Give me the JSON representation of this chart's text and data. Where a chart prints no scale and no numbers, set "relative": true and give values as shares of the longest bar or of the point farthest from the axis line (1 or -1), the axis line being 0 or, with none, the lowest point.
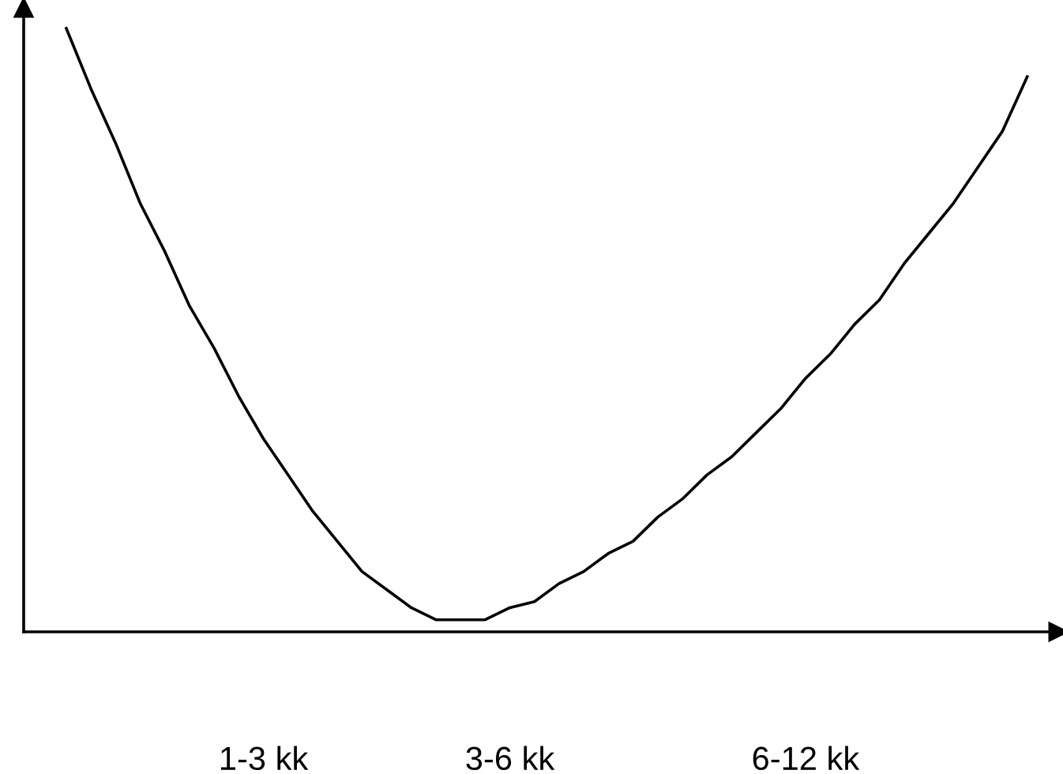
{
  "chart_data": {
    "type": "line",
    "relative": true,
    "marker": "none",
    "line_style": "solid",
    "grid": false,
    "legend": false,
    "categories": [
      null,
      null,
      null,
      null,
      null,
      null,
      null,
      null,
      "1-3 kk",
      null,
      null,
      null,
      null,
      null,
      null,
      null,
      null,
      null,
      "3-6 kk",
      null,
      null,
      null,
      null,
      null,
      null,
      null,
      null,
      null,
      null,
      null,
      "6-12 kk",
      null,
      null,
      null,
      null,
      null,
      null,
      null,
      null,
      null
    ],
    "series": [
      {
        "color": "#000000",
        "values": [
          1.0,
          0.9,
          0.81,
          0.71,
          0.63,
          0.54,
          0.47,
          0.39,
          0.32,
          0.26,
          0.2,
          0.15,
          0.1,
          0.07,
          0.04,
          0.02,
          0.02,
          0.02,
          0.04,
          0.05,
          0.08,
          0.1,
          0.13,
          0.15,
          0.19,
          0.22,
          0.26,
          0.29,
          0.33,
          0.37,
          0.42,
          0.46,
          0.51,
          0.55,
          0.61,
          0.66,
          0.71,
          0.77,
          0.83,
          0.92
        ]
      }
    ]
  }
}
